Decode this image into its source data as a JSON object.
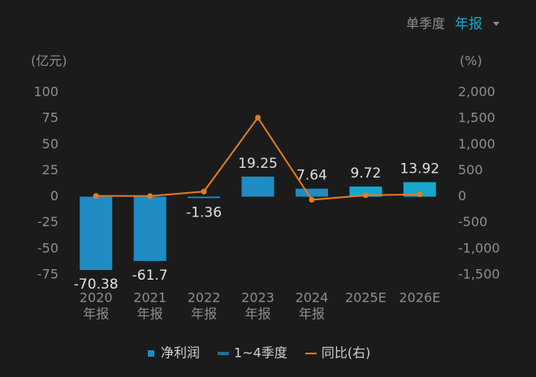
{
  "chart_data": {
    "type": "bar",
    "toggle": {
      "options": [
        "单季度",
        "年报"
      ],
      "active": 1
    },
    "y_unit": "(亿元)",
    "y2_unit": "(%)",
    "categories": [
      [
        "2020",
        "年报"
      ],
      [
        "2021",
        "年报"
      ],
      [
        "2022",
        "年报"
      ],
      [
        "2023",
        "年报"
      ],
      [
        "2024",
        "年报"
      ],
      [
        "2025E"
      ],
      [
        "2026E"
      ]
    ],
    "series": [
      {
        "name": "净利润",
        "color": "#1f8cc4",
        "colors": [
          "#1f8cc4",
          "#1f8cc4",
          "#1f8cc4",
          "#1f8cc4",
          "#1f8cc4",
          "#17a7cc",
          "#17a7cc"
        ],
        "values": [
          -70.38,
          -61.7,
          -1.36,
          19.25,
          7.64,
          9.72,
          13.92
        ]
      },
      {
        "name": "同比(右)",
        "color": "#e27d22",
        "axis": "y2",
        "values": [
          15,
          12,
          98,
          1515,
          -60,
          27,
          43
        ]
      }
    ],
    "legend": [
      {
        "name": "净利润",
        "color": "#1f8cc4",
        "symbol": "square"
      },
      {
        "name": "1~4季度",
        "color": "#1f6f9a",
        "symbol": "dash"
      },
      {
        "name": "同比(右)",
        "color": "#e27d22",
        "symbol": "line"
      }
    ],
    "ylim": [
      -75,
      100
    ],
    "yticks": [
      100,
      75,
      50,
      25,
      0,
      -25,
      -50,
      -75
    ],
    "y2lim": [
      -1500,
      2000
    ],
    "y2ticks": [
      {
        "value": 2000,
        "label": "2,000"
      },
      {
        "value": 1500,
        "label": "1,500"
      },
      {
        "value": 1000,
        "label": "1,000"
      },
      500,
      0,
      -500,
      {
        "value": -1000,
        "label": "-1,000"
      },
      {
        "value": -1500,
        "label": "-1,500"
      }
    ]
  }
}
